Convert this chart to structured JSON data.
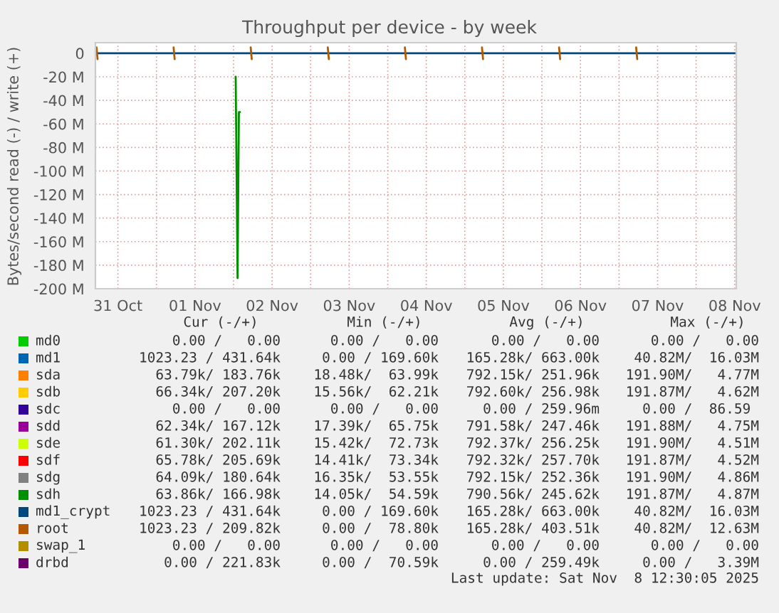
{
  "chart_data": {
    "type": "line",
    "title": "Throughput per device - by week",
    "ylabel": "Bytes/second read (-) / write (+)",
    "xlim": [
      "2025-10-31T05:00",
      "2025-11-08T12:30"
    ],
    "xticks": [
      {
        "value": "2025-10-31T12:00",
        "label": "31 Oct"
      },
      {
        "value": "2025-11-01T00:00",
        "label": null
      },
      {
        "value": "2025-11-01T12:00",
        "label": "01 Nov"
      },
      {
        "value": "2025-11-02T00:00",
        "label": null
      },
      {
        "value": "2025-11-02T12:00",
        "label": "02 Nov"
      },
      {
        "value": "2025-11-03T00:00",
        "label": null
      },
      {
        "value": "2025-11-03T12:00",
        "label": "03 Nov"
      },
      {
        "value": "2025-11-04T00:00",
        "label": null
      },
      {
        "value": "2025-11-04T12:00",
        "label": "04 Nov"
      },
      {
        "value": "2025-11-05T00:00",
        "label": null
      },
      {
        "value": "2025-11-05T12:00",
        "label": "05 Nov"
      },
      {
        "value": "2025-11-06T00:00",
        "label": null
      },
      {
        "value": "2025-11-06T12:00",
        "label": "06 Nov"
      },
      {
        "value": "2025-11-07T00:00",
        "label": null
      },
      {
        "value": "2025-11-07T12:00",
        "label": "07 Nov"
      },
      {
        "value": "2025-11-08T00:00",
        "label": null
      },
      {
        "value": "2025-11-08T12:00",
        "label": "08 Nov"
      }
    ],
    "ylim": [
      -200,
      9
    ],
    "yticks": [
      {
        "value": 0,
        "label": "0"
      },
      {
        "value": -20,
        "label": "-20 M"
      },
      {
        "value": -40,
        "label": "-40 M"
      },
      {
        "value": -60,
        "label": "-60 M"
      },
      {
        "value": -80,
        "label": "-80 M"
      },
      {
        "value": -100,
        "label": "-100 M"
      },
      {
        "value": -120,
        "label": "-120 M"
      },
      {
        "value": -140,
        "label": "-140 M"
      },
      {
        "value": -160,
        "label": "-160 M"
      },
      {
        "value": -180,
        "label": "-180 M"
      },
      {
        "value": -200,
        "label": "-200 M"
      }
    ],
    "grid": true,
    "legend": "bottom",
    "marker": "none",
    "line_style": "solid",
    "series": [
      {
        "name": "md0",
        "color": "#00cc00"
      },
      {
        "name": "md1",
        "color": "#0066b3"
      },
      {
        "name": "sda",
        "color": "#ff8000"
      },
      {
        "name": "sdb",
        "color": "#ffcc00"
      },
      {
        "name": "sdc",
        "color": "#330099"
      },
      {
        "name": "sdd",
        "color": "#990099"
      },
      {
        "name": "sde",
        "color": "#ccff00"
      },
      {
        "name": "sdf",
        "color": "#ff0000"
      },
      {
        "name": "sdg",
        "color": "#808080"
      },
      {
        "name": "sdh",
        "color": "#008f00",
        "x": [
          "2025-11-02T00:40",
          "2025-11-02T01:15",
          "2025-11-02T01:40",
          "2025-11-02T02:00"
        ],
        "values": [
          -20,
          -191,
          -50,
          -50
        ]
      },
      {
        "name": "md1_crypt",
        "color": "#00487d",
        "x": [
          "2025-10-31T05:00",
          "2025-11-08T12:30"
        ],
        "values": [
          0,
          0
        ]
      },
      {
        "name": "root",
        "color": "#b35a00",
        "x": [
          "2025-10-31T05:20",
          "2025-10-31T05:40",
          "2025-10-31T12:00",
          "2025-11-01T05:20",
          "2025-11-01T05:40",
          "2025-11-01T12:00",
          "2025-11-02T05:20",
          "2025-11-02T05:40",
          "2025-11-02T12:00",
          "2025-11-03T05:20",
          "2025-11-03T05:40",
          "2025-11-03T12:00",
          "2025-11-04T05:20",
          "2025-11-04T05:40",
          "2025-11-04T12:00",
          "2025-11-05T05:20",
          "2025-11-05T05:40",
          "2025-11-05T12:00",
          "2025-11-06T05:20",
          "2025-11-06T05:40",
          "2025-11-06T12:00",
          "2025-11-07T05:20",
          "2025-11-07T05:40"
        ],
        "values": [
          5,
          -5,
          null,
          5,
          -5,
          null,
          5,
          -5,
          null,
          5,
          -5,
          null,
          5,
          -5,
          null,
          5,
          -5,
          null,
          5,
          -5,
          null,
          5,
          -5
        ]
      },
      {
        "name": "swap_1",
        "color": "#b38f00"
      },
      {
        "name": "drbd",
        "color": "#6b006b"
      }
    ],
    "annotations": [
      "Cur (-/+)",
      "Min (-/+)",
      "Avg (-/+)",
      "Max (-/+)",
      "0.00 /   0.00",
      "0.00 /   0.00",
      "0.00 /   0.00",
      "0.00 /   0.00",
      "1023.23 / 431.64k",
      "0.00 / 169.60k",
      "165.28k/ 663.00k",
      "40.82M/  16.03M",
      "63.79k/ 183.76k",
      "18.48k/  63.99k",
      "792.15k/ 251.96k",
      "191.90M/   4.77M",
      "66.34k/ 207.20k",
      "15.56k/  62.21k",
      "792.60k/ 256.98k",
      "191.87M/   4.62M",
      "0.00 /   0.00",
      "0.00 /   0.00",
      "0.00 / 259.96m",
      "0.00 /  86.59 ",
      "62.34k/ 167.12k",
      "17.39k/  65.75k",
      "791.58k/ 247.46k",
      "191.88M/   4.75M",
      "61.30k/ 202.11k",
      "15.42k/  72.73k",
      "792.37k/ 256.25k",
      "191.90M/   4.51M",
      "65.78k/ 205.69k",
      "14.41k/  73.34k",
      "792.32k/ 257.70k",
      "191.87M/   4.52M",
      "64.09k/ 180.64k",
      "16.35k/  53.55k",
      "792.15k/ 252.36k",
      "191.90M/   4.86M",
      "63.86k/ 166.98k",
      "14.05k/  54.59k",
      "790.56k/ 245.62k",
      "191.87M/   4.87M",
      "1023.23 / 431.64k",
      "0.00 / 169.60k",
      "165.28k/ 663.00k",
      "40.82M/  16.03M",
      "1023.23 / 209.82k",
      "0.00 /  78.80k",
      "165.28k/ 403.51k",
      "40.82M/  12.63M",
      "0.00 /   0.00",
      "0.00 /   0.00",
      "0.00 /   0.00",
      "0.00 /   0.00",
      "0.00 / 221.83k",
      "0.00 /  70.59k",
      "0.00 / 259.49k",
      "0.00 /   3.39M",
      "Last update: Sat Nov  8 12:30:05 2025"
    ]
  }
}
